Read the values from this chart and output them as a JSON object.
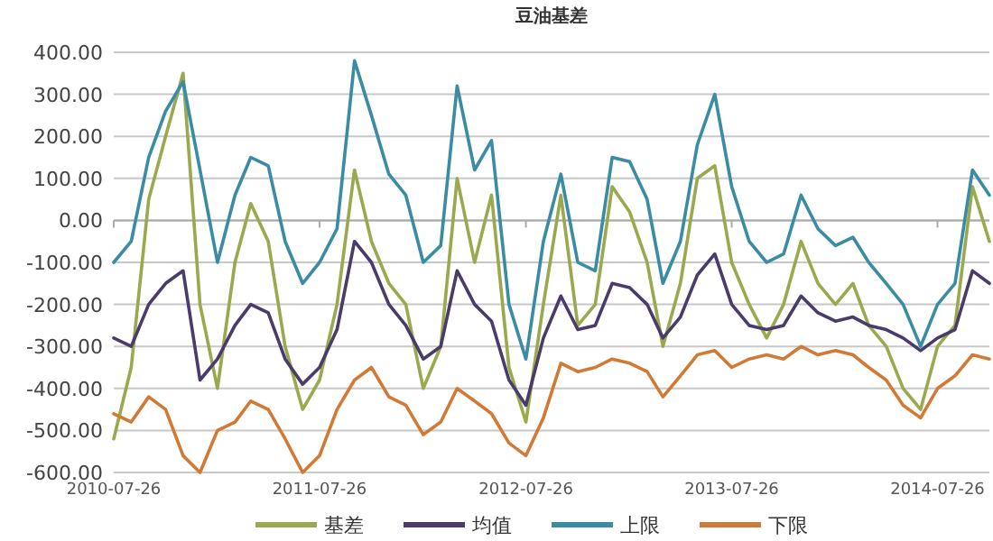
{
  "chart_data": {
    "type": "line",
    "title": "豆油基差",
    "x": [
      "2010-07-26",
      "2010-08-26",
      "2010-09-26",
      "2010-10-26",
      "2010-11-26",
      "2010-12-26",
      "2011-01-26",
      "2011-02-26",
      "2011-03-26",
      "2011-04-26",
      "2011-05-26",
      "2011-06-26",
      "2011-07-26",
      "2011-08-26",
      "2011-09-26",
      "2011-10-26",
      "2011-11-26",
      "2011-12-26",
      "2012-01-26",
      "2012-02-26",
      "2012-03-26",
      "2012-04-26",
      "2012-05-26",
      "2012-06-26",
      "2012-07-26",
      "2012-08-26",
      "2012-09-26",
      "2012-10-26",
      "2012-11-26",
      "2012-12-26",
      "2013-01-26",
      "2013-02-26",
      "2013-03-26",
      "2013-04-26",
      "2013-05-26",
      "2013-06-26",
      "2013-07-26",
      "2013-08-26",
      "2013-09-26",
      "2013-10-26",
      "2013-11-26",
      "2013-12-26",
      "2014-01-26",
      "2014-02-26",
      "2014-03-26",
      "2014-04-26",
      "2014-05-26",
      "2014-06-26",
      "2014-07-26",
      "2014-08-26",
      "2014-09-26",
      "2014-10-26"
    ],
    "series": [
      {
        "name": "基差",
        "color": "#9aa94e",
        "values": [
          -520,
          -350,
          50,
          200,
          350,
          -200,
          -400,
          -100,
          40,
          -50,
          -300,
          -450,
          -380,
          -200,
          120,
          -50,
          -150,
          -200,
          -400,
          -300,
          100,
          -100,
          60,
          -350,
          -480,
          -200,
          60,
          -250,
          -200,
          80,
          20,
          -100,
          -300,
          -150,
          100,
          130,
          -100,
          -200,
          -280,
          -200,
          -50,
          -150,
          -200,
          -150,
          -250,
          -300,
          -400,
          -450,
          -300,
          -250,
          80,
          -50
        ]
      },
      {
        "name": "均值",
        "color": "#4a3b6b",
        "values": [
          -280,
          -300,
          -200,
          -150,
          -120,
          -380,
          -330,
          -250,
          -200,
          -220,
          -330,
          -390,
          -350,
          -260,
          -50,
          -100,
          -200,
          -250,
          -330,
          -300,
          -120,
          -200,
          -240,
          -380,
          -440,
          -280,
          -180,
          -260,
          -250,
          -150,
          -160,
          -200,
          -280,
          -230,
          -130,
          -80,
          -200,
          -250,
          -260,
          -250,
          -180,
          -220,
          -240,
          -230,
          -250,
          -260,
          -280,
          -310,
          -280,
          -260,
          -120,
          -150
        ]
      },
      {
        "name": "上限",
        "color": "#3a8ca5",
        "values": [
          -100,
          -50,
          150,
          260,
          330,
          120,
          -100,
          60,
          150,
          130,
          -50,
          -150,
          -100,
          -20,
          380,
          250,
          110,
          60,
          -100,
          -60,
          320,
          120,
          190,
          -200,
          -330,
          -50,
          110,
          -100,
          -120,
          150,
          140,
          50,
          -150,
          -50,
          180,
          300,
          80,
          -50,
          -100,
          -80,
          60,
          -20,
          -60,
          -40,
          -100,
          -150,
          -200,
          -300,
          -200,
          -150,
          120,
          60
        ]
      },
      {
        "name": "下限",
        "color": "#d27a35",
        "values": [
          -460,
          -480,
          -420,
          -450,
          -560,
          -600,
          -500,
          -480,
          -430,
          -450,
          -520,
          -600,
          -560,
          -450,
          -380,
          -350,
          -420,
          -440,
          -510,
          -480,
          -400,
          -430,
          -460,
          -530,
          -560,
          -470,
          -340,
          -360,
          -350,
          -330,
          -340,
          -360,
          -420,
          -370,
          -320,
          -310,
          -350,
          -330,
          -320,
          -330,
          -300,
          -320,
          -310,
          -320,
          -350,
          -380,
          -440,
          -470,
          -400,
          -370,
          -320,
          -330
        ]
      }
    ],
    "xlim": [
      "2010-07-26",
      "2014-10-26"
    ],
    "xticks": [
      "2010-07-26",
      "2011-07-26",
      "2012-07-26",
      "2013-07-26",
      "2014-07-26"
    ],
    "ylim": [
      -600,
      400
    ],
    "yticks": [
      {
        "value": 400,
        "label": "400.00"
      },
      {
        "value": 300,
        "label": "300.00"
      },
      {
        "value": 200,
        "label": "200.00"
      },
      {
        "value": 100,
        "label": "100.00"
      },
      {
        "value": 0,
        "label": "0.00"
      },
      {
        "value": -100,
        "label": "-100.00"
      },
      {
        "value": -200,
        "label": "-200.00"
      },
      {
        "value": -300,
        "label": "-300.00"
      },
      {
        "value": -400,
        "label": "-400.00"
      },
      {
        "value": -500,
        "label": "-500.00"
      },
      {
        "value": -600,
        "label": "-600.00"
      }
    ],
    "grid": "y",
    "legend": "bottom"
  }
}
